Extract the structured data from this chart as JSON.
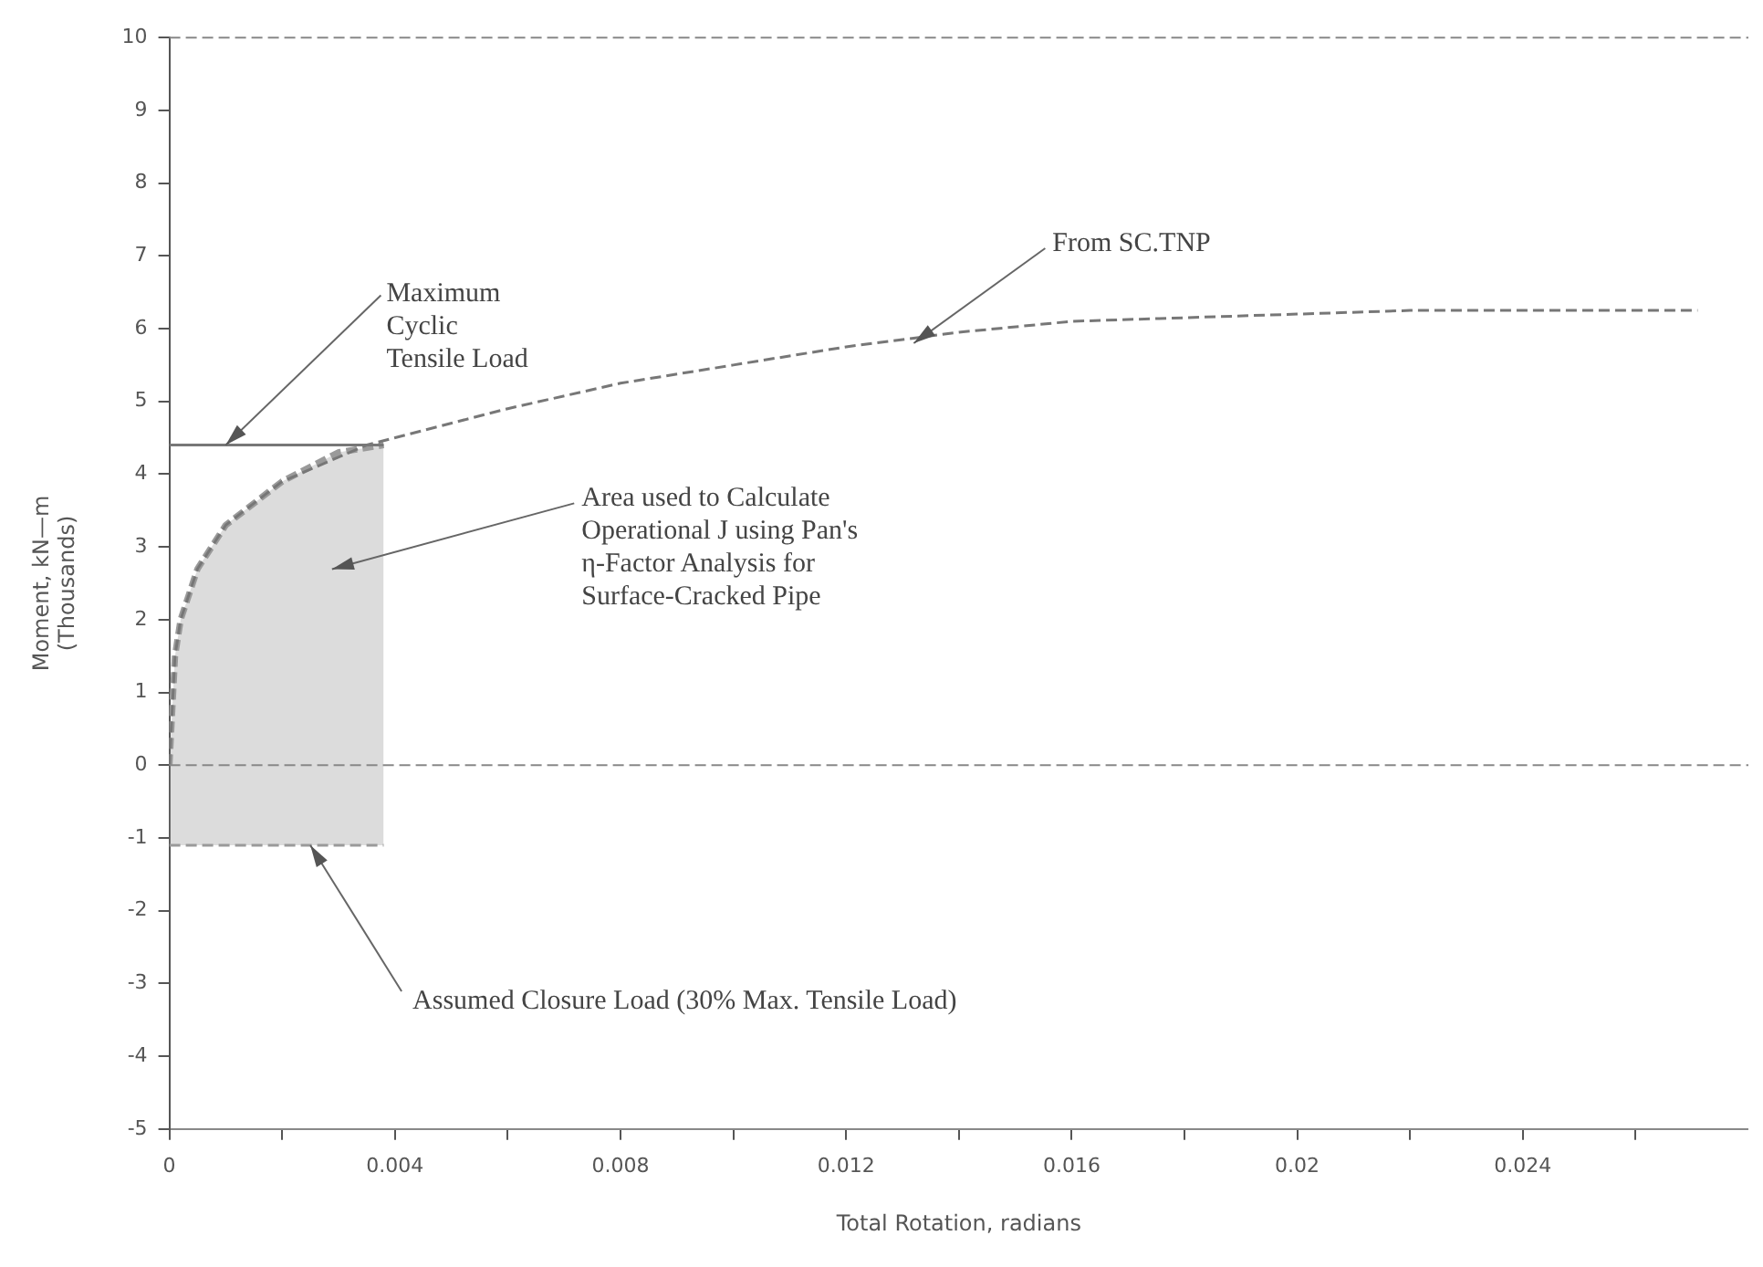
{
  "chart_data": {
    "type": "line",
    "xlabel": "Total Rotation, radians",
    "ylabel": "Moment, kN—m\n(Thousands)",
    "xlim": [
      0,
      0.028
    ],
    "ylim": [
      -5,
      10
    ],
    "xticks": [
      0,
      {
        "value": 0.002,
        "label": null
      },
      0.004,
      {
        "value": 0.006,
        "label": null
      },
      0.008,
      {
        "value": 0.01,
        "label": null
      },
      0.012,
      {
        "value": 0.014,
        "label": null
      },
      0.016,
      {
        "value": 0.018,
        "label": null
      },
      0.02,
      {
        "value": 0.022,
        "label": null
      },
      0.024,
      {
        "value": 0.026,
        "label": null
      }
    ],
    "yticks": [
      -5,
      -4,
      -3,
      -2,
      -1,
      0,
      1,
      2,
      3,
      4,
      5,
      6,
      7,
      8,
      9,
      10
    ],
    "grid": false,
    "marker": "none",
    "series": [
      {
        "type": "line",
        "color": "#777777",
        "line_style": "dashed",
        "x": [
          0,
          0.0001,
          0.0002,
          0.0005,
          0.001,
          0.002,
          0.0035,
          0.006,
          0.008,
          0.01,
          0.012,
          0.014,
          0.016,
          0.018,
          0.02,
          0.022,
          0.024,
          0.0271
        ],
        "values": [
          0,
          1.5,
          2,
          2.7,
          3.3,
          3.9,
          4.4,
          4.9,
          5.25,
          5.5,
          5.75,
          5.95,
          6.1,
          6.15,
          6.2,
          6.25,
          6.25,
          6.25
        ]
      },
      {
        "type": "line",
        "color": "#777777",
        "line_style": "solid",
        "x": [
          0,
          0.0038
        ],
        "values": [
          4.4,
          4.4
        ]
      },
      {
        "type": "line",
        "color": "#9a9a9a",
        "line_style": "dashed",
        "x": [
          0,
          0.0001,
          0.0002,
          0.0005,
          0.001,
          0.002,
          0.003,
          0.0038
        ],
        "values": [
          0,
          1.5,
          2,
          2.7,
          3.3,
          3.9,
          4.3,
          4.4
        ],
        "upper": [
          0,
          1.5,
          2,
          2.7,
          3.3,
          3.9,
          4.3,
          4.4
        ],
        "lower": [
          -1.1,
          -1.1,
          -1.1,
          -1.1,
          -1.1,
          -1.1,
          -1.1,
          -1.1
        ]
      },
      {
        "type": "line",
        "color": "#9a9a9a",
        "line_style": "dashed",
        "x": [
          0,
          0.0038
        ],
        "values": [
          -1.1,
          -1.1
        ]
      }
    ],
    "ref_lines": [
      {
        "axis": "y",
        "value": 0,
        "color": "#888888",
        "line_style": "dashed"
      }
    ],
    "annotations": [
      {
        "text": "Maximum\nCyclic\nTensile Load",
        "x": 0.001,
        "y": 4.4
      },
      {
        "text": "From SC.TNP",
        "x": 0.0132,
        "y": 5.8
      },
      "Area used to Calculate\nOperational J using Pan's\nη-Factor Analysis for\nSurface-Cracked Pipe",
      {
        "text": "Assumed Closure Load (30% Max. Tensile Load)",
        "x": 0.0025,
        "y": -1.1
      }
    ]
  }
}
